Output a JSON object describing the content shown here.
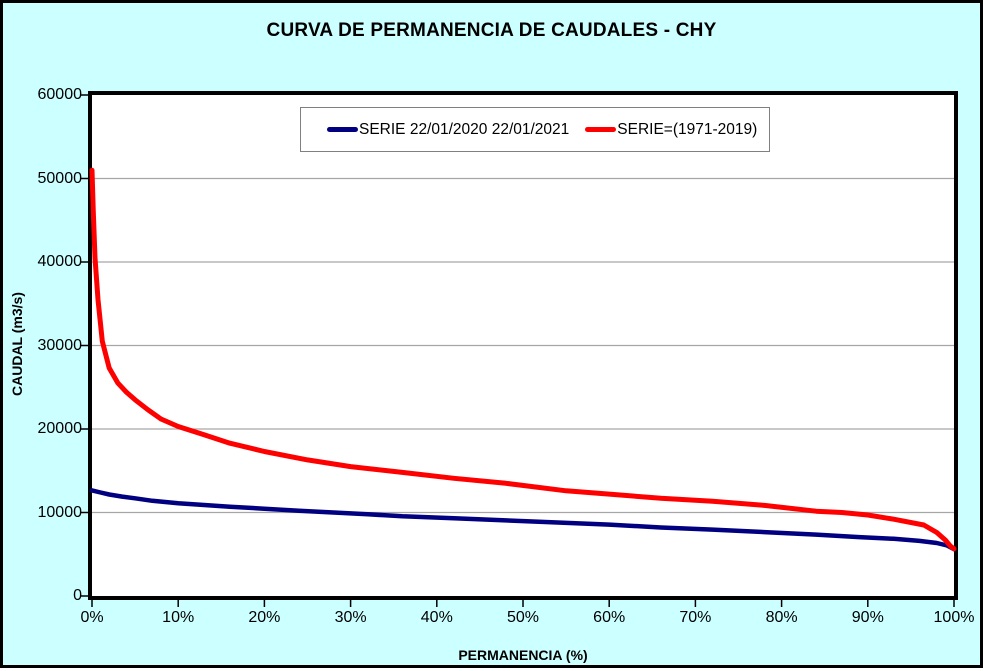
{
  "colors": {
    "background": "#CCFFFF",
    "plot_background": "#FFFFFF",
    "plot_border": "#000000",
    "gridline": "#A6A6A6",
    "tick": "#000000",
    "series_blue": "#000080",
    "series_red": "#FF0000"
  },
  "chart_data": {
    "type": "line",
    "title": "CURVA DE PERMANENCIA DE CAUDALES - CHY",
    "xlabel": "PERMANENCIA (%)",
    "ylabel": "CAUDAL (m3/s)",
    "xlim": [
      0,
      100
    ],
    "ylim": [
      0,
      60000
    ],
    "grid": "horizontal-only",
    "legend_position": "top-center-inside",
    "xticks": [
      "0%",
      "10%",
      "20%",
      "30%",
      "40%",
      "50%",
      "60%",
      "70%",
      "80%",
      "90%",
      "100%"
    ],
    "xtick_values": [
      0,
      10,
      20,
      30,
      40,
      50,
      60,
      70,
      80,
      90,
      100
    ],
    "yticks": [
      "0",
      "10000",
      "20000",
      "30000",
      "40000",
      "50000",
      "60000"
    ],
    "ytick_values": [
      0,
      10000,
      20000,
      30000,
      40000,
      50000,
      60000
    ],
    "series": [
      {
        "name": "SERIE 22/01/2020 22/01/2021",
        "color": "#000080",
        "stroke_width": 4.5,
        "x": [
          0,
          1,
          2,
          3.5,
          5,
          7,
          10,
          13,
          16,
          20,
          24,
          28,
          32,
          36,
          42,
          48,
          54,
          60,
          66,
          72,
          78,
          84,
          89,
          93,
          96,
          98,
          99.2,
          100
        ],
        "y": [
          12650,
          12400,
          12150,
          11900,
          11700,
          11400,
          11100,
          10900,
          10700,
          10450,
          10200,
          10000,
          9800,
          9550,
          9300,
          9050,
          8800,
          8550,
          8200,
          7950,
          7650,
          7350,
          7050,
          6850,
          6600,
          6350,
          6050,
          5600
        ]
      },
      {
        "name": "SERIE=(1971-2019)",
        "color": "#FF0000",
        "stroke_width": 5,
        "x": [
          0,
          0.15,
          0.35,
          0.7,
          1.2,
          2,
          3,
          4,
          5,
          6.5,
          8,
          10,
          13,
          16,
          20,
          25,
          30,
          36,
          42,
          48,
          55,
          60,
          66,
          72,
          78,
          84,
          87,
          90,
          93,
          96.5,
          98,
          99,
          99.6,
          100
        ],
        "y": [
          51000,
          46000,
          40500,
          35500,
          30500,
          27300,
          25500,
          24400,
          23500,
          22300,
          21200,
          20300,
          19300,
          18300,
          17300,
          16300,
          15500,
          14800,
          14100,
          13500,
          12600,
          12200,
          11700,
          11350,
          10850,
          10150,
          10000,
          9700,
          9200,
          8500,
          7600,
          6700,
          5950,
          5650
        ]
      }
    ]
  }
}
